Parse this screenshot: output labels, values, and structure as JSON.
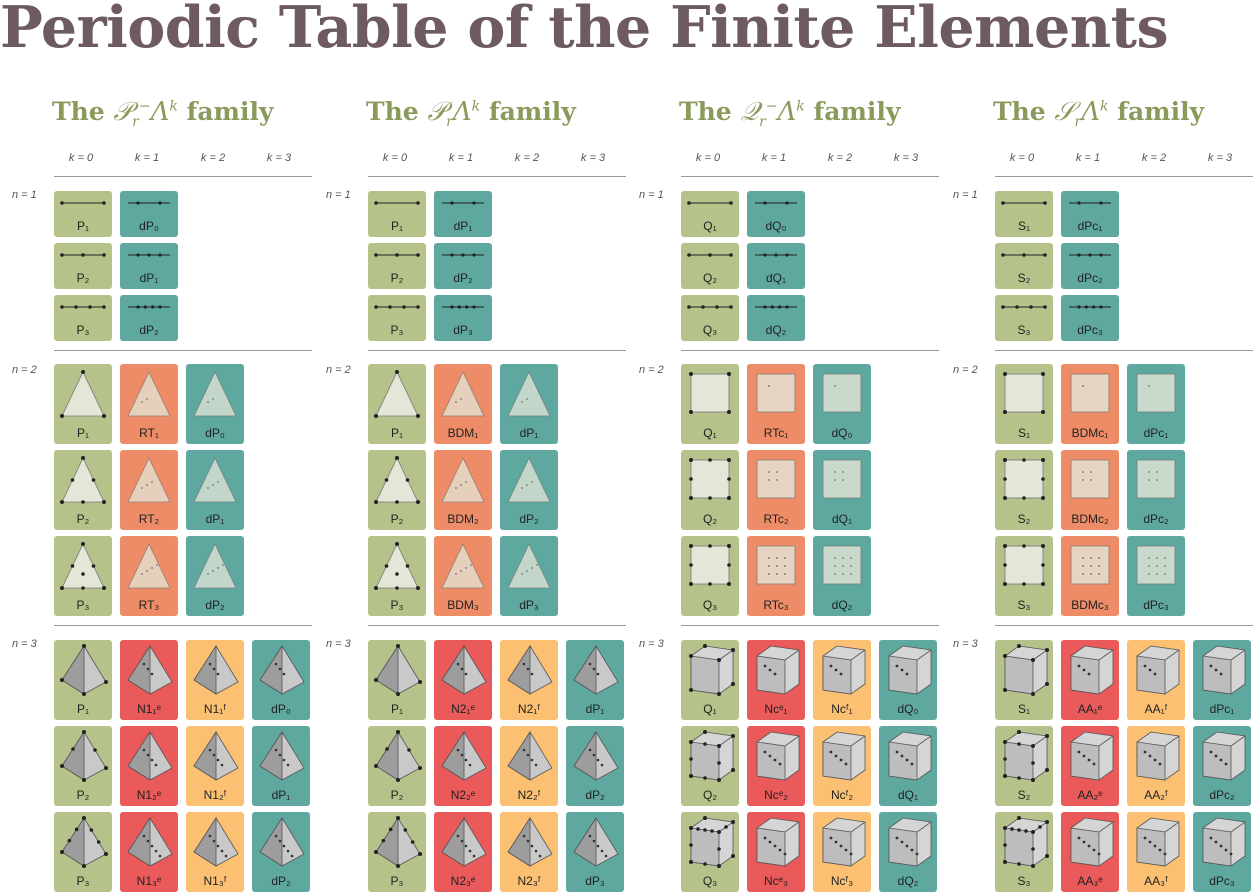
{
  "title": "Periodic Table of the Finite Elements",
  "k_headers": [
    "k = 0",
    "k = 1",
    "k = 2",
    "k = 3"
  ],
  "n_labels": [
    "n = 1",
    "n = 2",
    "n = 3"
  ],
  "colors": {
    "green": "#b5c28a",
    "teal": "#5fa8a0",
    "orange": "#ee8c67",
    "red": "#ea5a5a",
    "yellow": "#fbc072",
    "title": "#6d5a63",
    "heading": "#8a9a5b"
  },
  "families": [
    {
      "pre": "The",
      "symbol": "𝒫",
      "sub": "r",
      "sup": "−",
      "form": "Λ",
      "formsup": "k",
      "post": "family",
      "rows": [
        {
          "n": 1,
          "shape": "line",
          "cells": [
            [
              "P₁",
              "dP₀"
            ],
            [
              "P₂",
              "dP₁"
            ],
            [
              "P₃",
              "dP₂"
            ]
          ]
        },
        {
          "n": 2,
          "shape": "tri",
          "cells": [
            [
              "P₁",
              "RT₁",
              "dP₀"
            ],
            [
              "P₂",
              "RT₂",
              "dP₁"
            ],
            [
              "P₃",
              "RT₃",
              "dP₂"
            ]
          ]
        },
        {
          "n": 3,
          "shape": "tet",
          "cells": [
            [
              "P₁",
              "N1₁ᵉ",
              "N1₁ᶠ",
              "dP₀"
            ],
            [
              "P₂",
              "N1₂ᵉ",
              "N1₂ᶠ",
              "dP₁"
            ],
            [
              "P₃",
              "N1₃ᵉ",
              "N1₃ᶠ",
              "dP₂"
            ]
          ]
        }
      ]
    },
    {
      "pre": "The",
      "symbol": "𝒫",
      "sub": "r",
      "sup": "",
      "form": "Λ",
      "formsup": "k",
      "post": "family",
      "rows": [
        {
          "n": 1,
          "shape": "line",
          "cells": [
            [
              "P₁",
              "dP₁"
            ],
            [
              "P₂",
              "dP₂"
            ],
            [
              "P₃",
              "dP₃"
            ]
          ]
        },
        {
          "n": 2,
          "shape": "tri",
          "cells": [
            [
              "P₁",
              "BDM₁",
              "dP₁"
            ],
            [
              "P₂",
              "BDM₂",
              "dP₂"
            ],
            [
              "P₃",
              "BDM₃",
              "dP₃"
            ]
          ]
        },
        {
          "n": 3,
          "shape": "tet",
          "cells": [
            [
              "P₁",
              "N2₁ᵉ",
              "N2₁ᶠ",
              "dP₁"
            ],
            [
              "P₂",
              "N2₂ᵉ",
              "N2₂ᶠ",
              "dP₂"
            ],
            [
              "P₃",
              "N2₃ᵉ",
              "N2₃ᶠ",
              "dP₃"
            ]
          ]
        }
      ]
    },
    {
      "pre": "The",
      "symbol": "𝒬",
      "sub": "r",
      "sup": "−",
      "form": "Λ",
      "formsup": "k",
      "post": "family",
      "rows": [
        {
          "n": 1,
          "shape": "line",
          "cells": [
            [
              "Q₁",
              "dQ₀"
            ],
            [
              "Q₂",
              "dQ₁"
            ],
            [
              "Q₃",
              "dQ₂"
            ]
          ]
        },
        {
          "n": 2,
          "shape": "sq",
          "cells": [
            [
              "Q₁",
              "RTc₁",
              "dQ₀"
            ],
            [
              "Q₂",
              "RTc₂",
              "dQ₁"
            ],
            [
              "Q₃",
              "RTc₃",
              "dQ₂"
            ]
          ]
        },
        {
          "n": 3,
          "shape": "cube",
          "cells": [
            [
              "Q₁",
              "Ncᵉ₁",
              "Ncᶠ₁",
              "dQ₀"
            ],
            [
              "Q₂",
              "Ncᵉ₂",
              "Ncᶠ₂",
              "dQ₁"
            ],
            [
              "Q₃",
              "Ncᵉ₃",
              "Ncᶠ₃",
              "dQ₂"
            ]
          ]
        }
      ]
    },
    {
      "pre": "The",
      "symbol": "𝒮",
      "sub": "r",
      "sup": "",
      "form": "Λ",
      "formsup": "k",
      "post": "family",
      "rows": [
        {
          "n": 1,
          "shape": "line",
          "cells": [
            [
              "S₁",
              "dPc₁"
            ],
            [
              "S₂",
              "dPc₂"
            ],
            [
              "S₃",
              "dPc₃"
            ]
          ]
        },
        {
          "n": 2,
          "shape": "sq",
          "cells": [
            [
              "S₁",
              "BDMc₁",
              "dPc₁"
            ],
            [
              "S₂",
              "BDMc₂",
              "dPc₂"
            ],
            [
              "S₃",
              "BDMc₃",
              "dPc₃"
            ]
          ]
        },
        {
          "n": 3,
          "shape": "cube",
          "cells": [
            [
              "S₁",
              "AA₁ᵉ",
              "AA₁ᶠ",
              "dPc₁"
            ],
            [
              "S₂",
              "AA₂ᵉ",
              "AA₂ᶠ",
              "dPc₂"
            ],
            [
              "S₃",
              "AA₃ᵉ",
              "AA₃ᶠ",
              "dPc₃"
            ]
          ]
        }
      ]
    }
  ]
}
